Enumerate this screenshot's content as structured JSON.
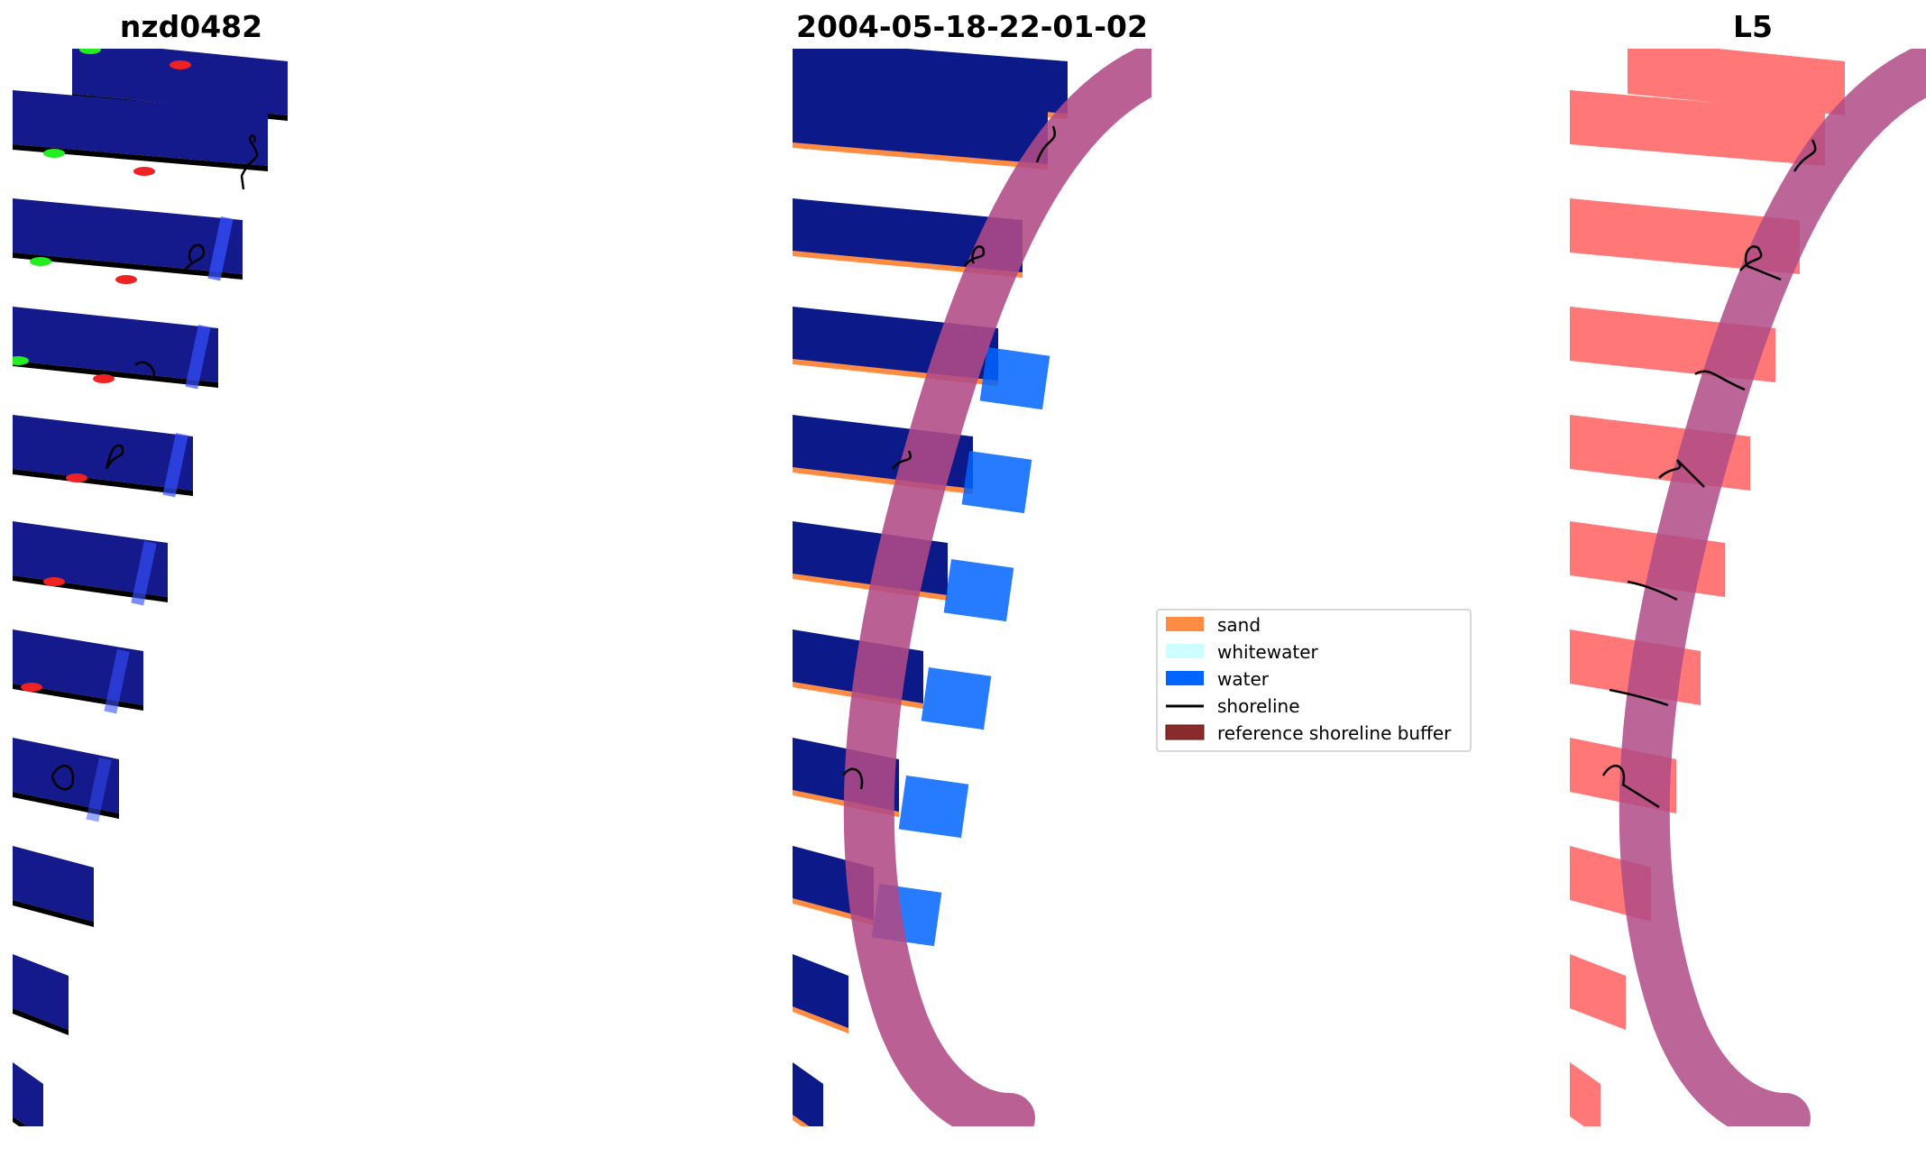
{
  "panels": [
    {
      "title": "nzd0482"
    },
    {
      "title": "2004-05-18-22-01-02"
    },
    {
      "title": "L5"
    }
  ],
  "legend": {
    "items": [
      {
        "label": "sand",
        "color": "#ff8c42"
      },
      {
        "label": "whitewater",
        "color": "#ccffff"
      },
      {
        "label": "water",
        "color": "#0064ff"
      },
      {
        "label": "shoreline",
        "color": "#000000"
      },
      {
        "label": "reference shoreline buffer",
        "color": "#8b2a2a"
      }
    ]
  },
  "colors": {
    "rgb_band": "#141a8c",
    "water_band": "#0b1a88",
    "buffer": "#b04a86",
    "mask_band": "#ff7777",
    "background": "#ffffff"
  }
}
